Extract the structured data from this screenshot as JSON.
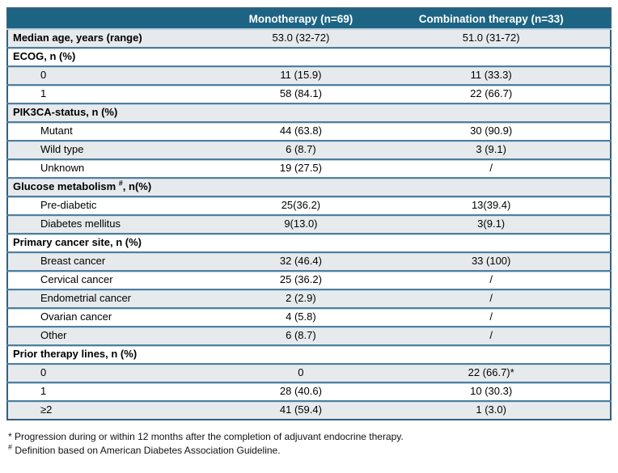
{
  "table": {
    "header": {
      "col1": "",
      "col2": "Monotherapy (n=69)",
      "col3": "Combination therapy (n=33)"
    },
    "rows": [
      {
        "type": "data-bold",
        "label": "Median age, years (range)",
        "mono": "53.0 (32-72)",
        "combo": "51.0 (31-72)"
      },
      {
        "type": "section",
        "label": "ECOG, n (%)"
      },
      {
        "type": "data",
        "label": "0",
        "mono": "11 (15.9)",
        "combo": "11 (33.3)"
      },
      {
        "type": "data",
        "label": "1",
        "mono": "58 (84.1)",
        "combo": "22 (66.7)"
      },
      {
        "type": "section",
        "label": "PIK3CA-status, n (%)"
      },
      {
        "type": "data",
        "label": "Mutant",
        "mono": "44 (63.8)",
        "combo": "30 (90.9)"
      },
      {
        "type": "data",
        "label": "Wild type",
        "mono": "6 (8.7)",
        "combo": "3 (9.1)"
      },
      {
        "type": "data",
        "label": "Unknown",
        "mono": "19 (27.5)",
        "combo": "/"
      },
      {
        "type": "section",
        "label_pre": "Glucose metabolism",
        "label_sup": "#",
        "label_post": ", n(%)"
      },
      {
        "type": "data",
        "label": "Pre-diabetic",
        "mono": "25(36.2)",
        "combo": "13(39.4)"
      },
      {
        "type": "data",
        "label": "Diabetes mellitus",
        "mono": "9(13.0)",
        "combo": "3(9.1)"
      },
      {
        "type": "section",
        "label": "Primary cancer site, n (%)"
      },
      {
        "type": "data",
        "label": "Breast cancer",
        "mono": "32 (46.4)",
        "combo": "33 (100)"
      },
      {
        "type": "data",
        "label": "Cervical cancer",
        "mono": "25 (36.2)",
        "combo": "/"
      },
      {
        "type": "data",
        "label": "Endometrial cancer",
        "mono": "2 (2.9)",
        "combo": "/"
      },
      {
        "type": "data",
        "label": "Ovarian cancer",
        "mono": "4 (5.8)",
        "combo": "/"
      },
      {
        "type": "data",
        "label": "Other",
        "mono": "6 (8.7)",
        "combo": "/"
      },
      {
        "type": "section",
        "label": "Prior therapy lines, n (%)"
      },
      {
        "type": "data",
        "label": "0",
        "mono": "0",
        "combo": "22 (66.7)*"
      },
      {
        "type": "data",
        "label": "1",
        "mono": "28 (40.6)",
        "combo": "10 (30.3)"
      },
      {
        "type": "data",
        "label": "≥2",
        "mono": "41 (59.4)",
        "combo": "1 (3.0)"
      }
    ]
  },
  "footnotes": {
    "note1": "* Progression during or within 12 months after the completion of adjuvant endocrine therapy.",
    "note2_sup": "#",
    "note2_text": " Definition based on American Diabetes Association Guideline."
  },
  "colors": {
    "header_bg": "#1d6484",
    "header_text": "#ffffff",
    "row_shaded_bg": "#e7eaed",
    "row_plain_bg": "#ffffff",
    "separator_dark": "#4d7f9e",
    "separator_light": "#c6d8e3",
    "outer_border": "#35607a",
    "body_text": "#000000"
  }
}
